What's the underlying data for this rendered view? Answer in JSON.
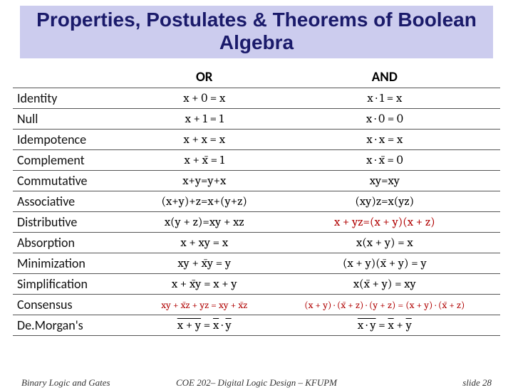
{
  "title": "Properties, Postulates & Theorems of Boolean Algebra",
  "headers": {
    "prop": "",
    "or": "OR",
    "and": "AND"
  },
  "rows": [
    {
      "name": "Identity",
      "or": "x + 0 = x",
      "and": "x · 1 = x"
    },
    {
      "name": "Null",
      "or": "x + 1 = 1",
      "and": "x · 0 = 0"
    },
    {
      "name": "Idempotence",
      "or": "x + x = x",
      "and": "x · x = x"
    },
    {
      "name": "Complement",
      "or": "x + x̄ = 1",
      "and": "x · x̄ = 0"
    },
    {
      "name": "Commutative",
      "or": "x+y=y+x",
      "and": "xy=xy"
    },
    {
      "name": "Associative",
      "or": "(x+y)+z=x+(y+z)",
      "and": "(xy)z=x(yz)"
    },
    {
      "name": "Distributive",
      "or": "x(y + z)=xy + xz",
      "and": "x + yz=(x + y)(x + z)",
      "hl": "and"
    },
    {
      "name": "Absorption",
      "or": "x + xy = x",
      "and": "x(x + y) = x"
    },
    {
      "name": "Minimization",
      "or": "xy + x̄y = y",
      "and": "(x + y)(x̄ + y) = y"
    },
    {
      "name": "Simplification",
      "or": "x + x̄y = x + y",
      "and": "x(x̄ + y) = xy"
    },
    {
      "name": "Consensus",
      "or": "xy + x̄z + yz = xy + x̄z",
      "and": "(x + y) · (x̄ + z) · (y + z) = (x + y) · (x̄ + z)",
      "hl": "both"
    },
    {
      "name": "De.Morgan's",
      "or": "overline(x + y) = x̄ · ȳ",
      "and": "overline(x · y) = x̄ + ȳ",
      "special": "demorgan"
    }
  ],
  "footer": {
    "left": "Binary Logic and Gates",
    "center": "COE 202– Digital Logic Design – KFUPM",
    "right": "slide 28"
  }
}
